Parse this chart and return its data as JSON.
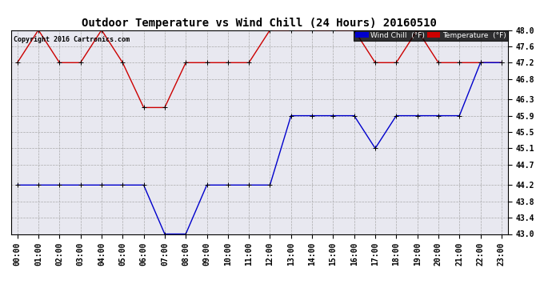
{
  "title": "Outdoor Temperature vs Wind Chill (24 Hours) 20160510",
  "copyright": "Copyright 2016 Cartronics.com",
  "hours": [
    "00:00",
    "01:00",
    "02:00",
    "03:00",
    "04:00",
    "05:00",
    "06:00",
    "07:00",
    "08:00",
    "09:00",
    "10:00",
    "11:00",
    "12:00",
    "13:00",
    "14:00",
    "15:00",
    "16:00",
    "17:00",
    "18:00",
    "19:00",
    "20:00",
    "21:00",
    "22:00",
    "23:00"
  ],
  "temperature": [
    47.2,
    48.0,
    47.2,
    47.2,
    48.0,
    47.2,
    46.1,
    46.1,
    47.2,
    47.2,
    47.2,
    47.2,
    48.0,
    48.0,
    48.0,
    48.0,
    48.0,
    47.2,
    47.2,
    48.0,
    47.2,
    47.2,
    47.2,
    47.2
  ],
  "wind_chill": [
    44.2,
    44.2,
    44.2,
    44.2,
    44.2,
    44.2,
    44.2,
    43.0,
    43.0,
    44.2,
    44.2,
    44.2,
    44.2,
    45.9,
    45.9,
    45.9,
    45.9,
    45.1,
    45.9,
    45.9,
    45.9,
    45.9,
    47.2,
    47.2
  ],
  "temp_color": "#cc0000",
  "wind_color": "#0000cc",
  "bg_color": "#ffffff",
  "plot_bg_color": "#e8e8f0",
  "grid_color": "#aaaaaa",
  "ylim_min": 43.0,
  "ylim_max": 48.0,
  "yticks": [
    43.0,
    43.4,
    43.8,
    44.2,
    44.7,
    45.1,
    45.5,
    45.9,
    46.3,
    46.8,
    47.2,
    47.6,
    48.0
  ],
  "title_fontsize": 10,
  "tick_fontsize": 7,
  "legend_wind_label": "Wind Chill  (°F)",
  "legend_temp_label": "Temperature  (°F)"
}
